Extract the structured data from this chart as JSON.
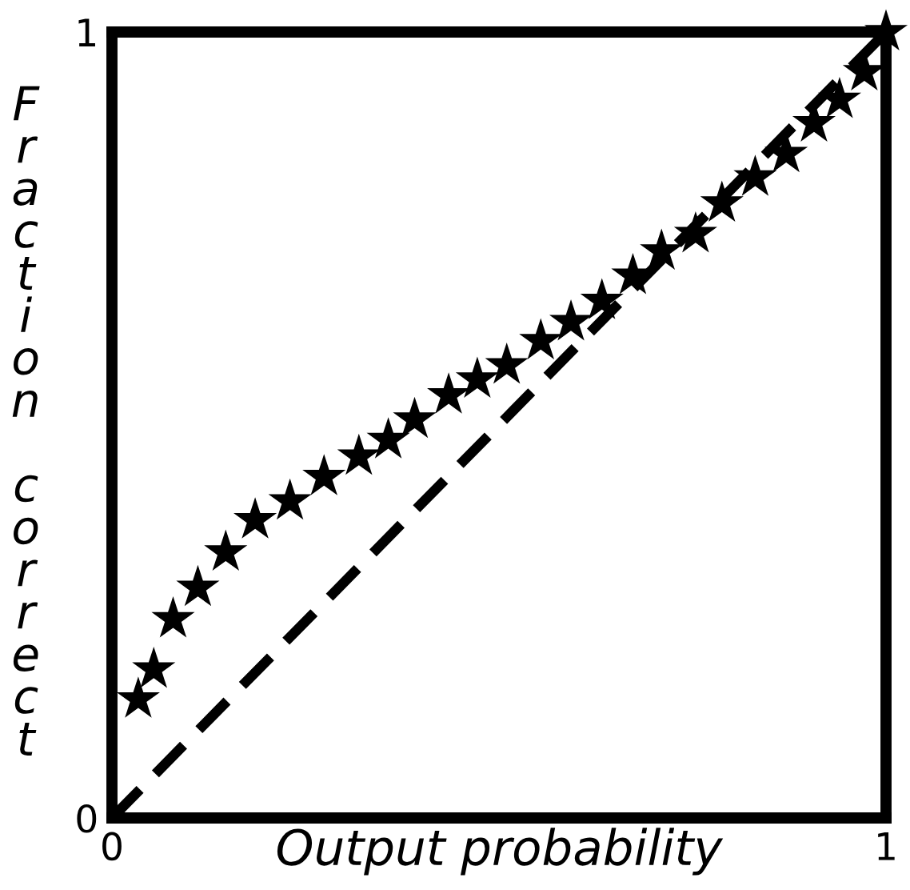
{
  "chart_data": {
    "type": "scatter",
    "xlabel": "Output probability",
    "ylabel": "Fraction correct",
    "xlim": [
      0,
      1
    ],
    "ylim": [
      0,
      1
    ],
    "xticks": [
      0,
      1
    ],
    "yticks": [
      0,
      1
    ],
    "series": [
      {
        "type": "line",
        "color": "#000000",
        "line_style": "dashed",
        "marker": "none",
        "x": [
          0,
          1
        ],
        "values": [
          0,
          1
        ]
      },
      {
        "color": "#000000",
        "marker": "star",
        "x": [
          0.034,
          0.054,
          0.079,
          0.111,
          0.147,
          0.185,
          0.23,
          0.274,
          0.319,
          0.357,
          0.391,
          0.435,
          0.472,
          0.51,
          0.554,
          0.593,
          0.633,
          0.673,
          0.71,
          0.754,
          0.788,
          0.831,
          0.871,
          0.907,
          0.94,
          0.972,
          1
        ],
        "values": [
          0.151,
          0.189,
          0.253,
          0.293,
          0.338,
          0.379,
          0.403,
          0.434,
          0.46,
          0.481,
          0.507,
          0.538,
          0.558,
          0.576,
          0.607,
          0.631,
          0.658,
          0.69,
          0.721,
          0.743,
          0.782,
          0.815,
          0.845,
          0.884,
          0.914,
          0.949,
          1
        ]
      }
    ]
  }
}
